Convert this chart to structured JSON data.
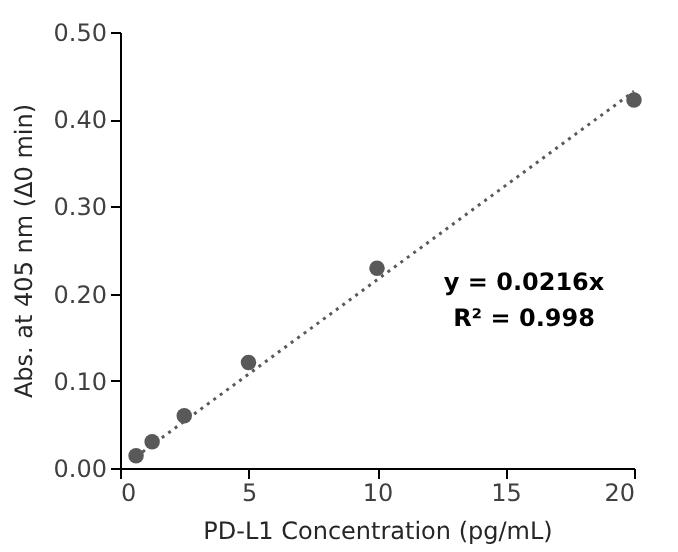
{
  "chart_data": {
    "type": "scatter",
    "xlabel": "PD-L1 Concentration (pg/mL)",
    "ylabel": "Abs. at 405 nm (Δ0 min)",
    "series": [
      {
        "color": "#595959",
        "marker": "circle",
        "x": [
          0.625,
          1.25,
          2.5,
          5,
          10,
          20
        ],
        "values": [
          0.014,
          0.03,
          0.06,
          0.121,
          0.229,
          0.422
        ]
      },
      {
        "type": "line",
        "color": "#595959",
        "line_style": "dotted",
        "marker": "none",
        "x": [
          0.625,
          20
        ],
        "values": [
          0.013,
          0.432
        ]
      }
    ],
    "xlim": [
      0,
      20
    ],
    "xticks": [
      0,
      5,
      10,
      15,
      20
    ],
    "ylim": [
      0,
      0.5
    ],
    "yticks": [
      {
        "value": 0,
        "label": "0.00"
      },
      {
        "value": 0.1,
        "label": "0.10"
      },
      {
        "value": 0.2,
        "label": "0.20"
      },
      {
        "value": 0.3,
        "label": "0.30"
      },
      {
        "value": 0.4,
        "label": "0.40"
      },
      {
        "value": 0.5,
        "label": "0.50"
      }
    ],
    "grid": false,
    "annotations": [
      "y = 0.0216x",
      "R² = 0.998"
    ]
  }
}
